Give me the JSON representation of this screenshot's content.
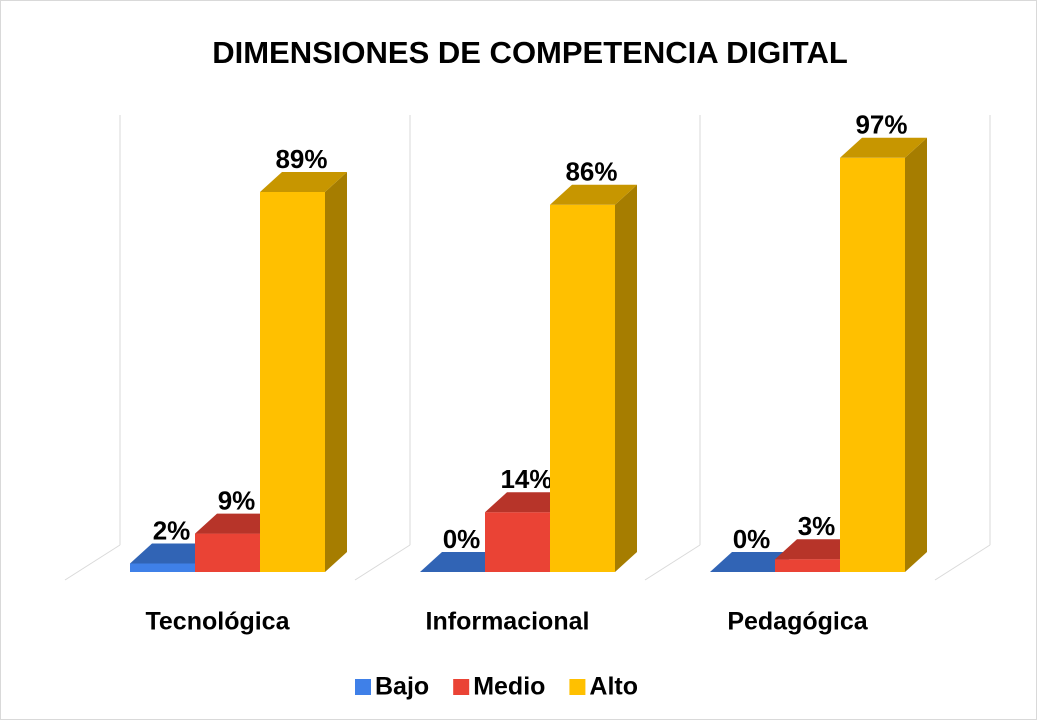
{
  "chart_data": {
    "type": "bar3d",
    "title": "DIMENSIONES DE COMPETENCIA DIGITAL",
    "categories": [
      "Tecnológica",
      "Informacional",
      "Pedagógica"
    ],
    "series": [
      {
        "name": "Bajo",
        "color": "#3f80e8",
        "values": [
          2,
          0,
          0
        ],
        "value_labels": [
          "2%",
          "0%",
          "0%"
        ]
      },
      {
        "name": "Medio",
        "color": "#ea4335",
        "values": [
          9,
          14,
          3
        ],
        "value_labels": [
          "9%",
          "14%",
          "3%"
        ]
      },
      {
        "name": "Alto",
        "color": "#ffc000",
        "values": [
          89,
          86,
          97
        ],
        "value_labels": [
          "89%",
          "86%",
          "97%"
        ]
      }
    ],
    "legend": "bottom"
  }
}
